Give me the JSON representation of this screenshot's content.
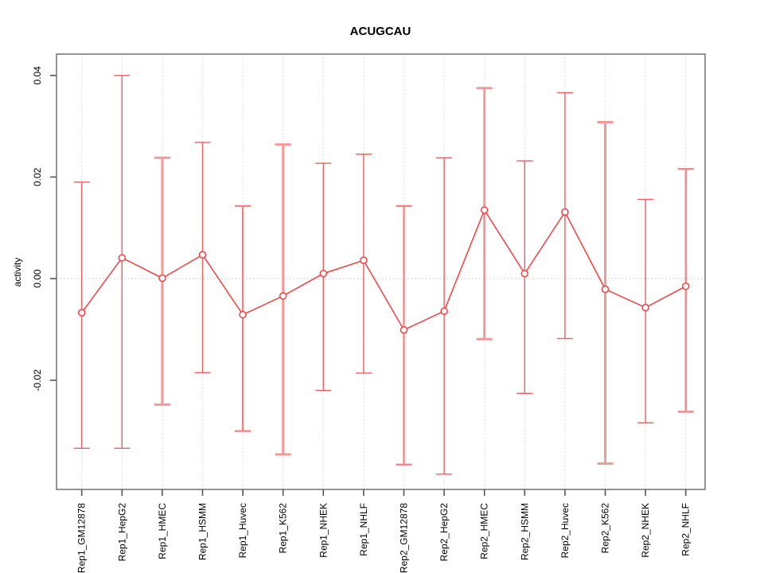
{
  "chart_data": {
    "type": "scatter",
    "subtype": "points-with-error-bars-connected-by-line",
    "title": "ACUGCAU",
    "xlabel": "",
    "ylabel": "activity",
    "legend": "none",
    "grid": {
      "vertical_dotted_line_per_category": true,
      "horizontal_dotted_zero_line": true
    },
    "categories": [
      "Rep1_GM12878",
      "Rep1_HepG2",
      "Rep1_HMEC",
      "Rep1_HSMM",
      "Rep1_Huvec",
      "Rep1_K562",
      "Rep1_NHEK",
      "Rep1_NHLF",
      "Rep2_GM12878",
      "Rep2_HepG2",
      "Rep2_HMEC",
      "Rep2_HSMM",
      "Rep2_Huvec",
      "Rep2_K562",
      "Rep2_NHEK",
      "Rep2_NHLF"
    ],
    "series": [
      {
        "name": "activity",
        "centers": [
          -0.0067,
          0.0041,
          0.0001,
          0.0047,
          -0.0071,
          -0.0034,
          0.001,
          0.0036,
          -0.0101,
          -0.0064,
          0.0135,
          0.001,
          0.0131,
          -0.0021,
          -0.0057,
          -0.0015
        ],
        "lower": [
          -0.0334,
          -0.0334,
          -0.0248,
          -0.0185,
          -0.03,
          -0.0346,
          -0.022,
          -0.0186,
          -0.0366,
          -0.0385,
          -0.0119,
          -0.0226,
          -0.0118,
          -0.0364,
          -0.0284,
          -0.0262
        ],
        "upper": [
          0.019,
          0.04,
          0.0238,
          0.0268,
          0.0143,
          0.0264,
          0.0227,
          0.0245,
          0.0143,
          0.0238,
          0.0375,
          0.0232,
          0.0366,
          0.0308,
          0.0156,
          0.0216
        ],
        "bar_weight": [
          "thin",
          "thin",
          "thick",
          "thin",
          "medium",
          "thick",
          "thin",
          "thin",
          "medium",
          "thin",
          "thick",
          "thin",
          "thin",
          "thick",
          "thin",
          "medium"
        ]
      }
    ],
    "yticks": [
      0.04,
      0.02,
      0.0,
      -0.02
    ],
    "ytick_labels": [
      "0.04",
      "0.02",
      "0.00",
      "-0.02"
    ],
    "ylim": [
      -0.0415,
      0.0442
    ],
    "colors": {
      "point": "#f04141",
      "line": "#f04141",
      "errorbar_thin": "#ee5f5f",
      "errorbar_medium": "#f28080",
      "errorbar_thick": "#f49898",
      "grid": "#d9d9d9",
      "zero_line": "#cfcfcf",
      "axis_box": "#7a7a7a",
      "tick": "#555555",
      "text": "#000000",
      "background": "#ffffff"
    }
  }
}
